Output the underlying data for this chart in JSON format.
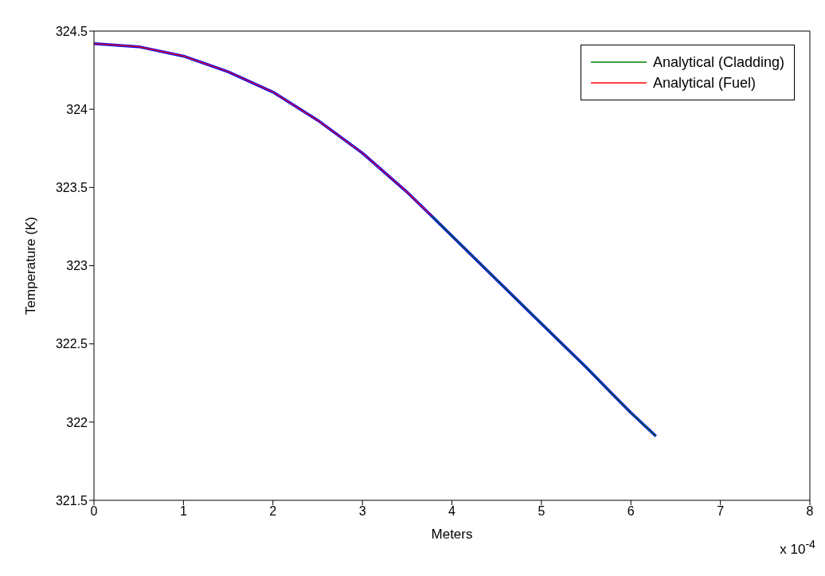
{
  "chart_data": {
    "type": "line",
    "xlabel": "Meters",
    "ylabel": "Temperature (K)",
    "xlim": [
      0,
      8
    ],
    "xticks": [
      0,
      1,
      2,
      3,
      4,
      5,
      6,
      7,
      8
    ],
    "ylim": [
      321.5,
      324.5
    ],
    "yticks": [
      321.5,
      322,
      322.5,
      323,
      323.5,
      324,
      324.5
    ],
    "legend": "top right",
    "marker": "none",
    "line_style": "solid",
    "annotations": [
      "x 10$^{-4}$"
    ],
    "series": [
      {
        "color": "#0000ff",
        "x": [
          0,
          0.5,
          1,
          1.5,
          2,
          2.5,
          3,
          3.5,
          3.77,
          4.5,
          5,
          5.5,
          6,
          6.28
        ],
        "values": [
          324.42,
          324.4,
          324.34,
          324.24,
          324.11,
          323.93,
          323.72,
          323.47,
          323.32,
          322.91,
          322.63,
          322.35,
          322.06,
          321.91
        ]
      },
      {
        "name": "Analytical (Cladding)",
        "color": "#008000",
        "x": [
          3.77,
          4.5,
          5,
          5.5,
          6,
          6.28
        ],
        "values": [
          323.32,
          322.91,
          322.63,
          322.35,
          322.06,
          321.91
        ]
      },
      {
        "name": "Analytical (Fuel)",
        "color": "#ff0000",
        "x": [
          0,
          0.5,
          1,
          1.5,
          2,
          2.5,
          3,
          3.5,
          3.77
        ],
        "values": [
          324.42,
          324.4,
          324.34,
          324.24,
          324.11,
          323.93,
          323.72,
          323.47,
          323.32
        ]
      }
    ]
  }
}
